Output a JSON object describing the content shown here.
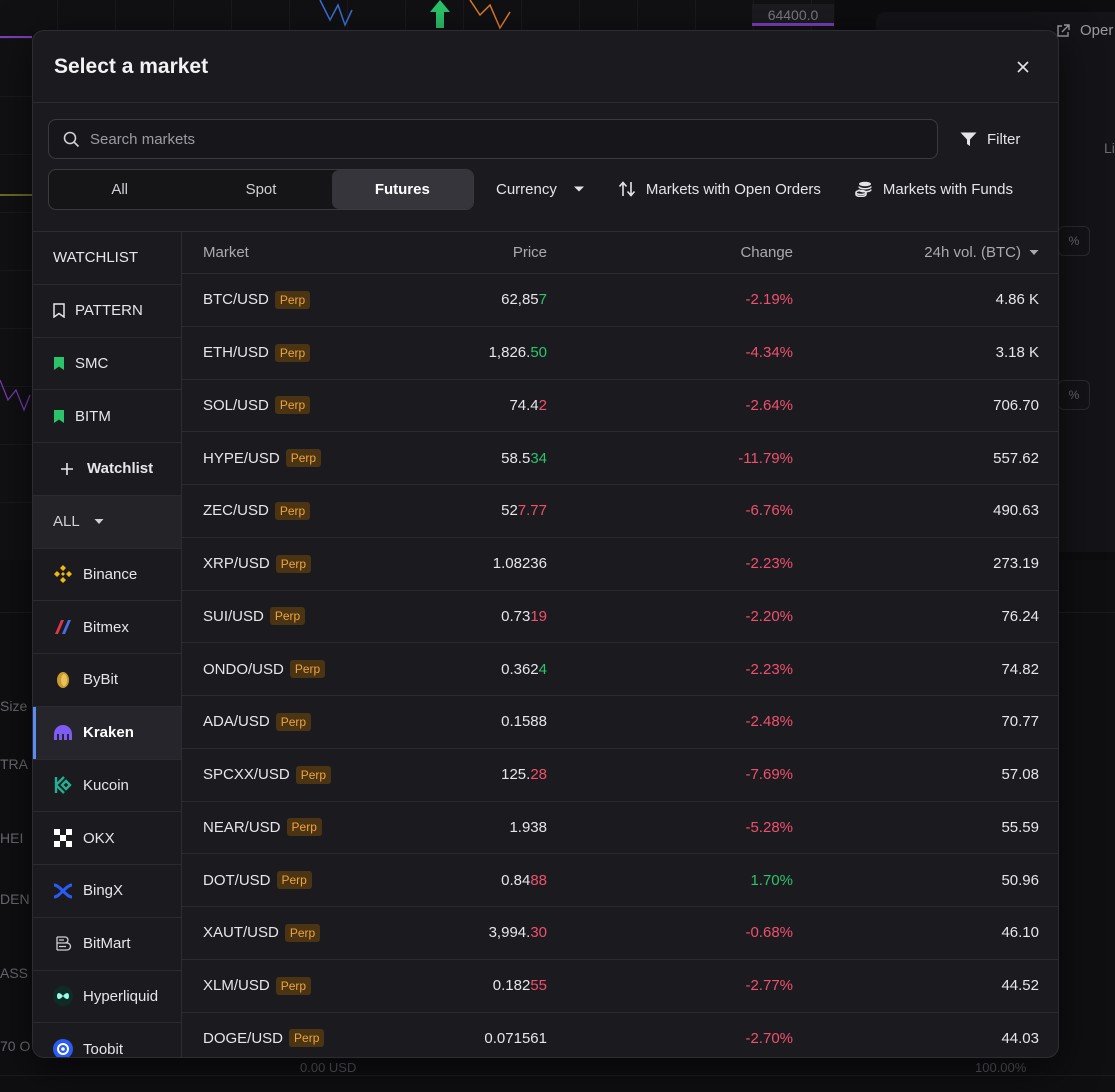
{
  "background": {
    "price_tag": "64400.0",
    "open_label": "Oper",
    "side_labels": [
      "Size",
      "TRA",
      "HEI",
      "DEN",
      "ASS",
      "70 O"
    ],
    "bottom_text": "0.00 USD",
    "bottom_pct": "100.00%",
    "right_tab": "Li",
    "mini_pct": "%"
  },
  "modal": {
    "title": "Select a market",
    "search_placeholder": "Search markets",
    "filter_label": "Filter",
    "tabs": [
      {
        "label": "All",
        "active": false
      },
      {
        "label": "Spot",
        "active": false
      },
      {
        "label": "Futures",
        "active": true
      }
    ],
    "currency_label": "Currency",
    "open_orders_label": "Markets with Open Orders",
    "funds_label": "Markets with Funds"
  },
  "sidebar": {
    "watchlist_header": "WATCHLIST",
    "watchlists": [
      {
        "label": "PATTERN",
        "icon": "bookmark-outline-icon"
      },
      {
        "label": "SMC",
        "icon": "bookmark-filled-icon"
      },
      {
        "label": "BITM",
        "icon": "bookmark-filled-icon"
      }
    ],
    "add_watchlist_label": "Watchlist",
    "all_label": "ALL",
    "exchanges": [
      {
        "label": "Binance",
        "icon": "binance-icon"
      },
      {
        "label": "Bitmex",
        "icon": "bitmex-icon"
      },
      {
        "label": "ByBit",
        "icon": "bybit-icon"
      },
      {
        "label": "Kraken",
        "icon": "kraken-icon",
        "active": true
      },
      {
        "label": "Kucoin",
        "icon": "kucoin-icon"
      },
      {
        "label": "OKX",
        "icon": "okx-icon"
      },
      {
        "label": "BingX",
        "icon": "bingx-icon"
      },
      {
        "label": "BitMart",
        "icon": "bitmart-icon"
      },
      {
        "label": "Hyperliquid",
        "icon": "hyperliquid-icon"
      },
      {
        "label": "Toobit",
        "icon": "toobit-icon"
      }
    ]
  },
  "table": {
    "headers": {
      "market": "Market",
      "price": "Price",
      "change": "Change",
      "volume": "24h vol. (BTC)"
    },
    "perp_label": "Perp",
    "rows": [
      {
        "market": "BTC/USD",
        "price_main": "62,85",
        "price_tail": "7",
        "tail": "pos",
        "change": "-2.19%",
        "dir": "neg",
        "vol": "4.86 K"
      },
      {
        "market": "ETH/USD",
        "price_main": "1,826.",
        "price_tail": "50",
        "tail": "pos",
        "change": "-4.34%",
        "dir": "neg",
        "vol": "3.18 K"
      },
      {
        "market": "SOL/USD",
        "price_main": "74.4",
        "price_tail": "2",
        "tail": "neg",
        "change": "-2.64%",
        "dir": "neg",
        "vol": "706.70"
      },
      {
        "market": "HYPE/USD",
        "price_main": "58.5",
        "price_tail": "34",
        "tail": "pos",
        "change": "-11.79%",
        "dir": "neg",
        "vol": "557.62"
      },
      {
        "market": "ZEC/USD",
        "price_main": "52",
        "price_tail": "7.77",
        "tail": "neg",
        "change": "-6.76%",
        "dir": "neg",
        "vol": "490.63"
      },
      {
        "market": "XRP/USD",
        "price_main": "1.08236",
        "price_tail": "",
        "tail": "none",
        "change": "-2.23%",
        "dir": "neg",
        "vol": "273.19"
      },
      {
        "market": "SUI/USD",
        "price_main": "0.73",
        "price_tail": "19",
        "tail": "neg",
        "change": "-2.20%",
        "dir": "neg",
        "vol": "76.24"
      },
      {
        "market": "ONDO/USD",
        "price_main": "0.362",
        "price_tail": "4",
        "tail": "pos",
        "change": "-2.23%",
        "dir": "neg",
        "vol": "74.82"
      },
      {
        "market": "ADA/USD",
        "price_main": "0.1588",
        "price_tail": "",
        "tail": "none",
        "change": "-2.48%",
        "dir": "neg",
        "vol": "70.77"
      },
      {
        "market": "SPCXX/USD",
        "price_main": "125.",
        "price_tail": "28",
        "tail": "neg",
        "change": "-7.69%",
        "dir": "neg",
        "vol": "57.08"
      },
      {
        "market": "NEAR/USD",
        "price_main": "1.938",
        "price_tail": "",
        "tail": "none",
        "change": "-5.28%",
        "dir": "neg",
        "vol": "55.59"
      },
      {
        "market": "DOT/USD",
        "price_main": "0.84",
        "price_tail": "88",
        "tail": "neg",
        "change": "1.70%",
        "dir": "pos",
        "vol": "50.96"
      },
      {
        "market": "XAUT/USD",
        "price_main": "3,994.",
        "price_tail": "30",
        "tail": "neg",
        "change": "-0.68%",
        "dir": "neg",
        "vol": "46.10"
      },
      {
        "market": "XLM/USD",
        "price_main": "0.182",
        "price_tail": "55",
        "tail": "neg",
        "change": "-2.77%",
        "dir": "neg",
        "vol": "44.52"
      },
      {
        "market": "DOGE/USD",
        "price_main": "0.071561",
        "price_tail": "",
        "tail": "none",
        "change": "-2.70%",
        "dir": "neg",
        "vol": "44.03"
      }
    ]
  }
}
